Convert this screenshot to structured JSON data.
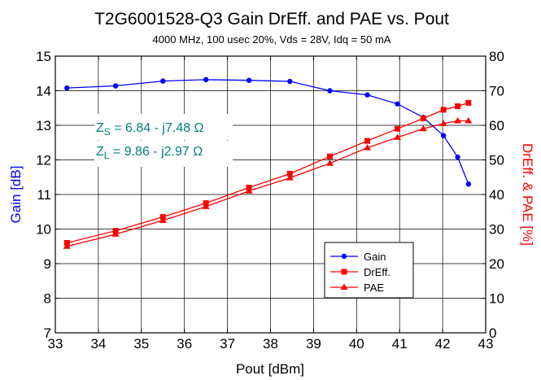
{
  "chart_data": {
    "type": "line",
    "title": "T2G6001528-Q3 Gain DrEff. and PAE vs. Pout",
    "subtitle": "4000 MHz, 100 usec 20%, Vds = 28V, Idq = 50 mA",
    "xlabel": "Pout [dBm]",
    "ylabel_left": "Gain [dB]",
    "ylabel_right": "DrEff. & PAE [%]",
    "xlim": [
      33,
      43
    ],
    "ylim_left": [
      7,
      15
    ],
    "ylim_right": [
      0,
      80
    ],
    "x_ticks": [
      "33",
      "34",
      "35",
      "36",
      "37",
      "38",
      "39",
      "40",
      "41",
      "42",
      "43"
    ],
    "y_left_ticks": [
      "7",
      "8",
      "9",
      "10",
      "11",
      "12",
      "13",
      "14",
      "15"
    ],
    "y_right_ticks": [
      "0",
      "10",
      "20",
      "30",
      "40",
      "50",
      "60",
      "70",
      "80"
    ],
    "grid": true,
    "legend_position": "bottom-right",
    "colors": {
      "gain": "#0000ff",
      "dreff": "#ff0000",
      "pae": "#ff0000",
      "annotation": "#008080"
    },
    "annotations": [
      {
        "main": "Z",
        "sub": "S",
        "rest": " =  6.84 - j7.48  Ω"
      },
      {
        "main": "Z",
        "sub": "L",
        "rest": " =  9.86 - j2.97  Ω"
      }
    ],
    "series": [
      {
        "name": "Gain",
        "axis": "left",
        "marker": "circle",
        "x": [
          33.27,
          34.4,
          35.5,
          36.5,
          37.5,
          38.45,
          39.38,
          40.25,
          40.95,
          41.55,
          42.02,
          42.35,
          42.6
        ],
        "values": [
          14.08,
          14.14,
          14.28,
          14.32,
          14.3,
          14.27,
          14.0,
          13.88,
          13.62,
          13.23,
          12.7,
          12.08,
          11.3
        ]
      },
      {
        "name": "DrEff.",
        "axis": "right",
        "marker": "square",
        "x": [
          33.27,
          34.4,
          35.5,
          36.5,
          37.5,
          38.45,
          39.38,
          40.25,
          40.95,
          41.55,
          42.02,
          42.35,
          42.6
        ],
        "values": [
          26.0,
          29.5,
          33.5,
          37.5,
          42.0,
          46.0,
          51.0,
          55.5,
          59.0,
          62.0,
          64.5,
          65.5,
          66.5
        ]
      },
      {
        "name": "PAE",
        "axis": "right",
        "marker": "triangle",
        "x": [
          33.27,
          34.4,
          35.5,
          36.5,
          37.5,
          38.45,
          39.38,
          40.25,
          40.95,
          41.55,
          42.02,
          42.35,
          42.6
        ],
        "values": [
          25.0,
          28.5,
          32.5,
          36.5,
          41.0,
          44.8,
          49.0,
          53.5,
          56.5,
          59.0,
          60.5,
          61.3,
          61.3
        ]
      }
    ]
  }
}
